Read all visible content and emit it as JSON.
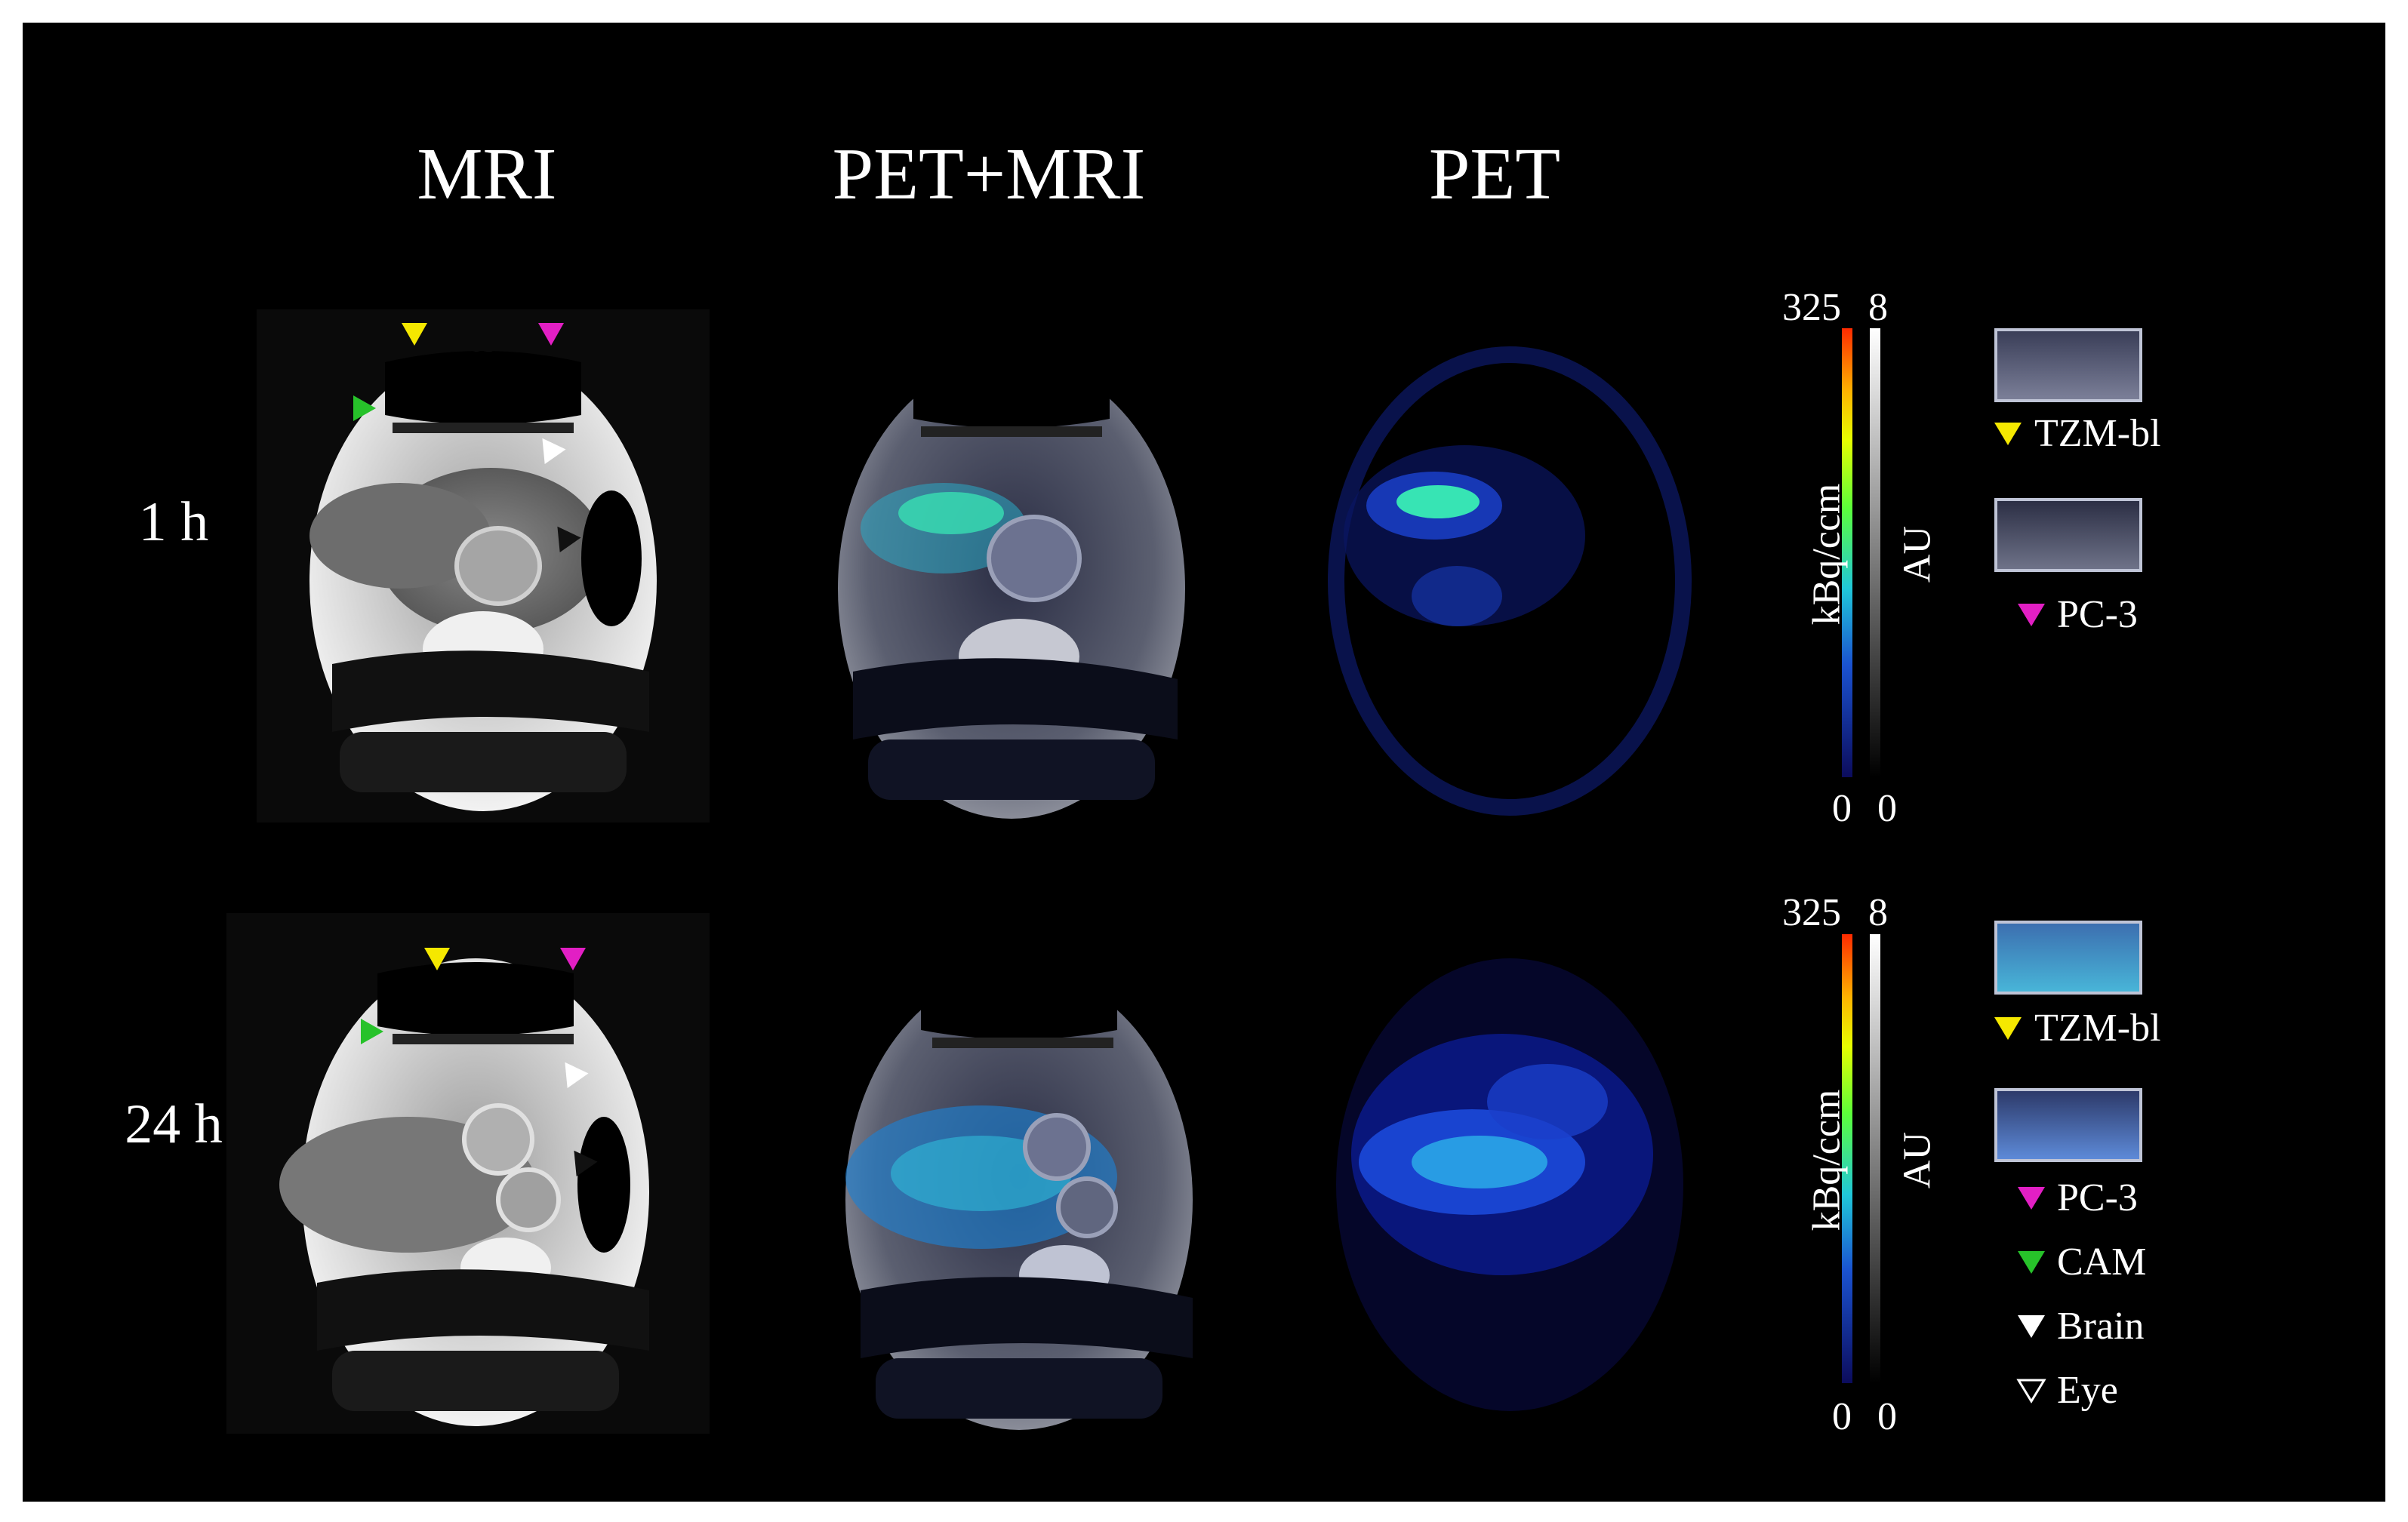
{
  "columns": {
    "mri": "MRI",
    "pet_mri": "PET+MRI",
    "pet": "PET"
  },
  "rows": [
    {
      "label": "1 h"
    },
    {
      "label": "24 h"
    }
  ],
  "colorbars": [
    {
      "max_left": "325",
      "max_right": "8",
      "min_left": "0",
      "min_right": "0",
      "unit_left": "kBq/ccm",
      "unit_right": "AU"
    },
    {
      "max_left": "325",
      "max_right": "8",
      "min_left": "0",
      "min_right": "0",
      "unit_left": "kBq/ccm",
      "unit_right": "AU"
    }
  ],
  "legend_top": [
    {
      "label": "TZM-bl",
      "color": "#f5e800",
      "icon": "yellow-triangle"
    },
    {
      "label": "PC-3",
      "color": "#e21fc4",
      "icon": "magenta-triangle"
    }
  ],
  "legend_bottom": [
    {
      "label": "TZM-bl",
      "color": "#f5e800",
      "icon": "yellow-triangle"
    },
    {
      "label": "PC-3",
      "color": "#e21fc4",
      "icon": "magenta-triangle"
    },
    {
      "label": "CAM",
      "color": "#27c22a",
      "icon": "green-triangle"
    },
    {
      "label": "Brain",
      "color": "#ffffff",
      "icon": "white-triangle"
    },
    {
      "label": "Eye",
      "color": "#ffffff",
      "icon": "outline-triangle"
    }
  ]
}
